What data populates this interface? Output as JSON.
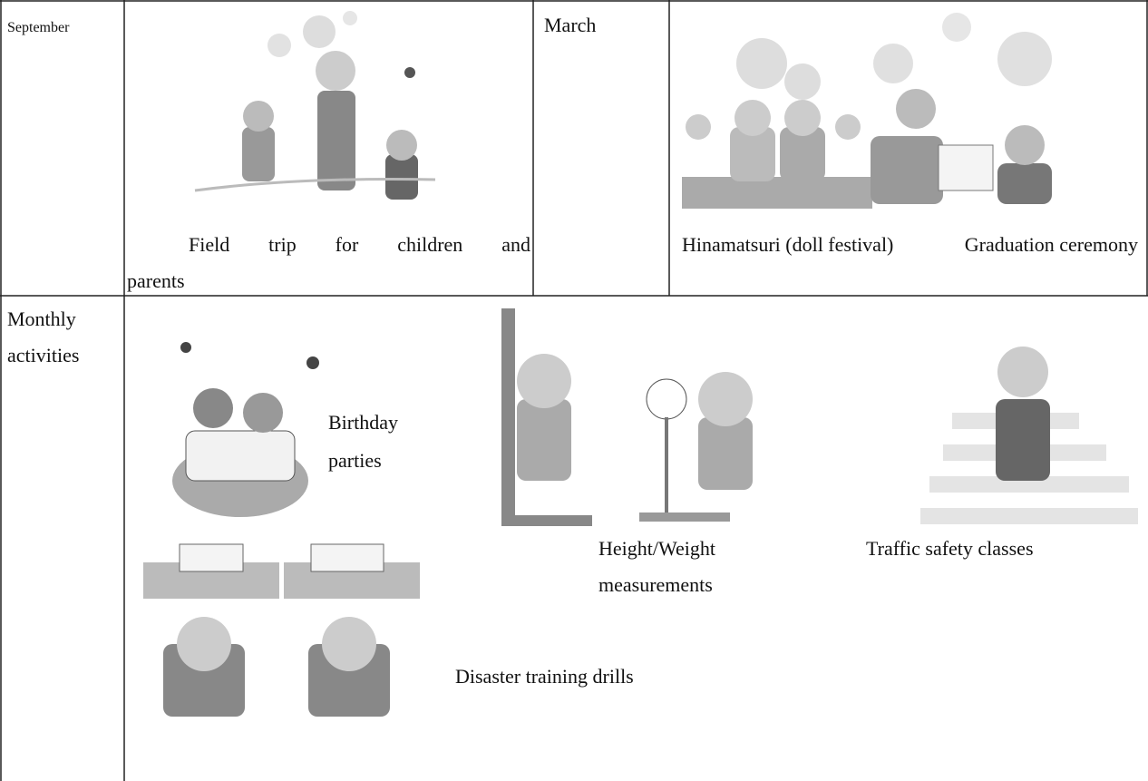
{
  "table": {
    "rows": [
      {
        "label": "September",
        "captions": [
          "Field trip for children and parents"
        ]
      },
      {
        "label": "March",
        "captions": [
          "Hinamatsuri (doll festival)",
          "Graduation ceremony"
        ]
      },
      {
        "label": "Monthly activities",
        "captions": [
          "Birthday parties",
          "Height/Weight measurements",
          "Traffic safety classes",
          "Disaster training drills"
        ]
      }
    ]
  }
}
